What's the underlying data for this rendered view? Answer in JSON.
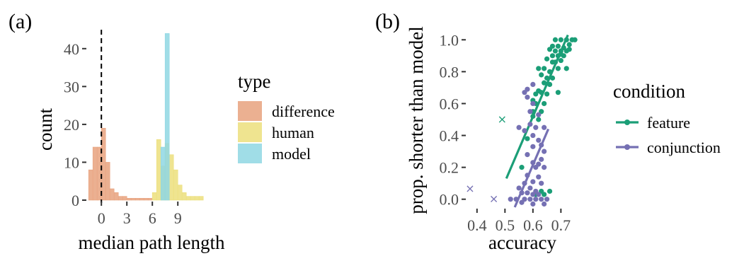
{
  "chart_data": [
    {
      "panel_label": "(a)",
      "type": "bar",
      "subtype": "overlapping histogram",
      "xlabel": "median path length",
      "ylabel": "count",
      "xticks": [
        0,
        3,
        6,
        9
      ],
      "yticks": [
        0,
        10,
        20,
        30,
        40
      ],
      "xlim": [
        -1.6,
        12.4
      ],
      "ylim": [
        0,
        45
      ],
      "bin_width": 0.5,
      "reference_line": {
        "x": 0,
        "style": "dashed",
        "color": "#000000"
      },
      "legend": {
        "title": "type",
        "position": "right"
      },
      "series": [
        {
          "name": "difference",
          "color": "#e8a27e",
          "bins": [
            [
              -1.5,
              8
            ],
            [
              -1,
              14
            ],
            [
              -0.5,
              14
            ],
            [
              0,
              19
            ],
            [
              0.5,
              10
            ],
            [
              1,
              3
            ],
            [
              1.5,
              2
            ],
            [
              2,
              1
            ],
            [
              2.5,
              1
            ],
            [
              3,
              0.5
            ],
            [
              3.5,
              0.5
            ],
            [
              4,
              0.5
            ],
            [
              4.5,
              0.5
            ],
            [
              5,
              0.5
            ],
            [
              5.5,
              0.5
            ]
          ]
        },
        {
          "name": "human",
          "color": "#ecdf7c",
          "bins": [
            [
              6,
              2
            ],
            [
              6.5,
              16
            ],
            [
              7,
              9
            ],
            [
              7.5,
              15
            ],
            [
              8,
              12
            ],
            [
              8.5,
              8
            ],
            [
              9,
              4
            ],
            [
              9.5,
              2
            ],
            [
              10,
              1
            ],
            [
              10.5,
              1
            ],
            [
              11,
              1
            ],
            [
              11.5,
              1
            ]
          ]
        },
        {
          "name": "model",
          "color": "#8fd7e3",
          "bins": [
            [
              7,
              14
            ],
            [
              7.5,
              44
            ]
          ]
        }
      ],
      "gridlines": false
    },
    {
      "panel_label": "(b)",
      "type": "scatter",
      "xlabel": "accuracy",
      "ylabel": "prop. shorter than model",
      "xticks": [
        0.4,
        0.5,
        0.6,
        0.7
      ],
      "xtick_labels": [
        "0.4",
        "0.5",
        "0.6",
        "0.7"
      ],
      "yticks": [
        0,
        0.2,
        0.4,
        0.6,
        0.8,
        1.0
      ],
      "ytick_labels": [
        "0.0",
        "0.2",
        "0.4",
        "0.6",
        "0.8",
        "1.0"
      ],
      "xlim": [
        0.365,
        0.77
      ],
      "ylim": [
        -0.05,
        1.05
      ],
      "legend": {
        "title": "condition",
        "position": "right"
      },
      "series": [
        {
          "name": "feature",
          "color": "#1b9e77",
          "fit_line": [
            [
              0.505,
              0.13
            ],
            [
              0.725,
              1.03
            ]
          ],
          "outliers": [
            [
              0.49,
              0.5
            ]
          ],
          "points": [
            [
              0.68,
              1.0
            ],
            [
              0.7,
              1.0
            ],
            [
              0.72,
              1.0
            ],
            [
              0.74,
              1.0
            ],
            [
              0.75,
              1.0
            ],
            [
              0.67,
              0.96
            ],
            [
              0.69,
              0.96
            ],
            [
              0.71,
              0.95
            ],
            [
              0.73,
              0.97
            ],
            [
              0.7,
              0.93
            ],
            [
              0.66,
              0.94
            ],
            [
              0.68,
              0.93
            ],
            [
              0.72,
              0.93
            ],
            [
              0.73,
              0.94
            ],
            [
              0.7,
              0.91
            ],
            [
              0.69,
              0.9
            ],
            [
              0.71,
              0.9
            ],
            [
              0.67,
              0.9
            ],
            [
              0.65,
              0.88
            ],
            [
              0.67,
              0.86
            ],
            [
              0.68,
              0.86
            ],
            [
              0.7,
              0.87
            ],
            [
              0.62,
              0.82
            ],
            [
              0.64,
              0.82
            ],
            [
              0.66,
              0.8
            ],
            [
              0.69,
              0.82
            ],
            [
              0.72,
              0.82
            ],
            [
              0.63,
              0.78
            ],
            [
              0.65,
              0.76
            ],
            [
              0.67,
              0.76
            ],
            [
              0.66,
              0.72
            ],
            [
              0.64,
              0.73
            ],
            [
              0.62,
              0.68
            ],
            [
              0.63,
              0.67
            ],
            [
              0.61,
              0.66
            ],
            [
              0.65,
              0.66
            ],
            [
              0.69,
              0.67
            ],
            [
              0.6,
              0.62
            ],
            [
              0.61,
              0.6
            ],
            [
              0.64,
              0.6
            ],
            [
              0.6,
              0.55
            ],
            [
              0.63,
              0.55
            ],
            [
              0.6,
              0.52
            ],
            [
              0.62,
              0.5
            ],
            [
              0.58,
              0.38
            ],
            [
              0.56,
              0.2
            ],
            [
              0.61,
              0.03
            ],
            [
              0.64,
              0.03
            ],
            [
              0.63,
              0.05
            ],
            [
              0.66,
              0.05
            ]
          ]
        },
        {
          "name": "conjunction",
          "color": "#7570b3",
          "fit_line": [
            [
              0.535,
              -0.05
            ],
            [
              0.655,
              0.44
            ]
          ],
          "outliers": [
            [
              0.375,
              0.065
            ],
            [
              0.46,
              0.0
            ]
          ],
          "points": [
            [
              0.6,
              0.72
            ],
            [
              0.58,
              0.69
            ],
            [
              0.57,
              0.67
            ],
            [
              0.58,
              0.64
            ],
            [
              0.6,
              0.6
            ],
            [
              0.59,
              0.55
            ],
            [
              0.62,
              0.53
            ],
            [
              0.55,
              0.45
            ],
            [
              0.59,
              0.47
            ],
            [
              0.61,
              0.45
            ],
            [
              0.57,
              0.43
            ],
            [
              0.64,
              0.45
            ],
            [
              0.6,
              0.4
            ],
            [
              0.62,
              0.37
            ],
            [
              0.63,
              0.34
            ],
            [
              0.6,
              0.33
            ],
            [
              0.64,
              0.3
            ],
            [
              0.58,
              0.28
            ],
            [
              0.63,
              0.25
            ],
            [
              0.6,
              0.23
            ],
            [
              0.62,
              0.22
            ],
            [
              0.61,
              0.2
            ],
            [
              0.64,
              0.2
            ],
            [
              0.58,
              0.15
            ],
            [
              0.62,
              0.14
            ],
            [
              0.6,
              0.11
            ],
            [
              0.57,
              0.1
            ],
            [
              0.63,
              0.1
            ],
            [
              0.55,
              0.07
            ],
            [
              0.59,
              0.07
            ],
            [
              0.61,
              0.05
            ],
            [
              0.56,
              0.04
            ],
            [
              0.58,
              0.04
            ],
            [
              0.6,
              0.03
            ],
            [
              0.62,
              0.03
            ],
            [
              0.54,
              0.0
            ],
            [
              0.57,
              0.0
            ],
            [
              0.59,
              0.0
            ],
            [
              0.61,
              0.0
            ],
            [
              0.63,
              0.0
            ],
            [
              0.65,
              0.0
            ],
            [
              0.52,
              0.0
            ],
            [
              0.56,
              -0.02
            ],
            [
              0.6,
              -0.03
            ],
            [
              0.64,
              -0.03
            ]
          ]
        }
      ],
      "gridlines": false
    }
  ]
}
